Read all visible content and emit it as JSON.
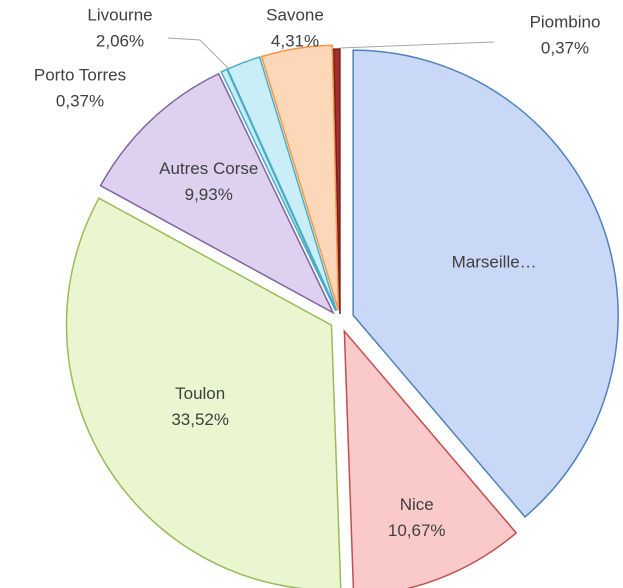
{
  "chart_data": {
    "type": "pie",
    "categories": [
      "Marseille…",
      "Nice",
      "Toulon",
      "Autres Corse",
      "Porto Torres",
      "Livourne",
      "Savone",
      "Piombino"
    ],
    "values": [
      38.77,
      10.67,
      33.52,
      9.93,
      0.37,
      2.06,
      4.31,
      0.37
    ],
    "value_labels": [
      null,
      "10,67%",
      "33,52%",
      "9,93%",
      "0,37%",
      "2,06%",
      "4,31%",
      "0,37%"
    ],
    "colors": [
      "#c9d8f7",
      "#fac9c9",
      "#e9f6cf",
      "#ddd1ef",
      "#c9eef7",
      "#c9eef7",
      "#fcd7b8",
      "#a3302f"
    ],
    "edge_colors": [
      "#4f81bd",
      "#c0504d",
      "#9bbb59",
      "#8064a2",
      "#4bacc6",
      "#4bacc6",
      "#f79646",
      "#7a1f1e"
    ]
  }
}
